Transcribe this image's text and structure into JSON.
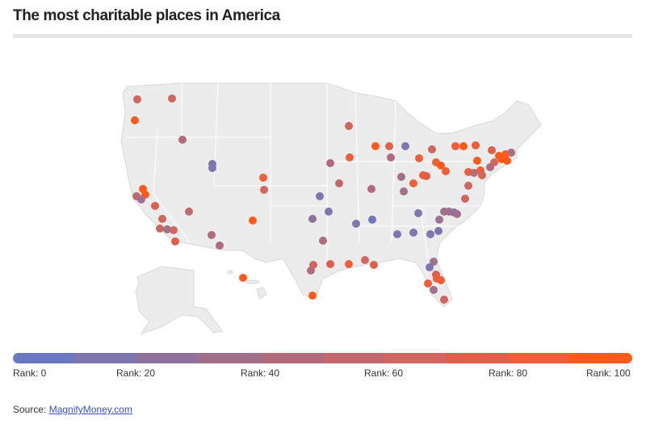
{
  "title": "The most charitable places in America",
  "legend": {
    "colors": [
      "#6b78c0",
      "#7f76ad",
      "#8e729c",
      "#a0708c",
      "#b06b7c",
      "#c0686e",
      "#cf6660",
      "#e05f4a",
      "#ee5e38",
      "#ff5a1a"
    ],
    "labels": [
      "Rank: 0",
      "Rank: 20",
      "Rank: 40",
      "Rank: 60",
      "Rank: 80",
      "Rank: 100"
    ]
  },
  "points_rank": [
    60,
    60,
    95,
    40,
    10,
    10,
    95,
    95,
    55,
    30,
    70,
    55,
    60,
    65,
    35,
    60,
    70,
    40,
    45,
    95,
    95,
    85,
    60,
    15,
    15,
    25,
    40,
    40,
    55,
    60,
    80,
    90,
    70,
    40,
    10,
    40,
    15,
    5,
    10,
    60,
    45,
    70,
    80,
    65,
    70,
    95,
    35,
    35,
    80,
    85,
    85,
    70,
    65,
    85,
    90,
    85,
    10,
    15,
    10,
    10,
    35,
    35,
    30,
    20,
    30,
    60,
    60,
    85,
    90,
    85,
    85,
    90,
    40,
    80,
    65,
    40,
    70,
    60,
    95,
    90,
    95,
    95,
    45,
    35,
    70,
    85,
    85,
    35,
    80,
    60,
    15
  ],
  "source": {
    "label": "Source:",
    "link": "MagnifyMoney.com"
  }
}
